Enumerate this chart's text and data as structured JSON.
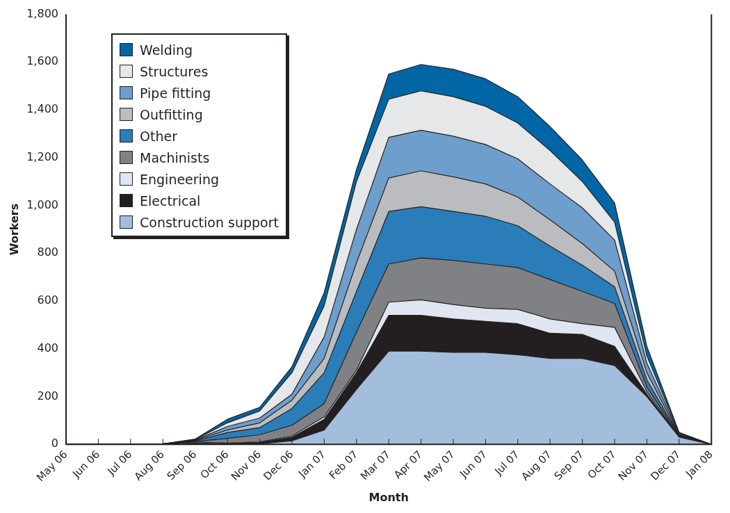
{
  "chart_data": {
    "type": "area",
    "stacked": true,
    "xlabel": "Month",
    "ylabel": "Workers",
    "categories": [
      "May 06",
      "Jun 06",
      "Jul 06",
      "Aug 06",
      "Sep 06",
      "Oct 06",
      "Nov 06",
      "Dec 06",
      "Jan 07",
      "Feb 07",
      "Mar 07",
      "Apr 07",
      "May 07",
      "Jun 07",
      "Jul 07",
      "Aug 07",
      "Sep 07",
      "Oct 07",
      "Nov 07",
      "Dec 07",
      "Jan 08"
    ],
    "ylim": [
      0,
      1800
    ],
    "yticks": [
      0,
      200,
      400,
      600,
      800,
      {
        "value": 1000,
        "label": "1,000"
      },
      {
        "value": 1200,
        "label": "1,200"
      },
      {
        "value": 1400,
        "label": "1,400"
      },
      {
        "value": 1600,
        "label": "1,600"
      },
      {
        "value": 1800,
        "label": "1,800"
      }
    ],
    "grid": false,
    "legend": "top left",
    "marker": "none",
    "series": [
      {
        "name": "Construction support",
        "color": "#a3bddc",
        "values": [
          0,
          0,
          0,
          0,
          0,
          0,
          2,
          15,
          60,
          230,
          390,
          390,
          385,
          385,
          375,
          360,
          360,
          330,
          200,
          30,
          0
        ]
      },
      {
        "name": "Electrical",
        "color": "#231f20",
        "values": [
          0,
          2,
          2,
          2,
          5,
          3,
          6,
          15,
          45,
          70,
          150,
          150,
          140,
          130,
          130,
          105,
          100,
          80,
          10,
          2,
          0
        ]
      },
      {
        "name": "Engineering",
        "color": "#dfe6f1",
        "values": [
          0,
          0,
          0,
          0,
          5,
          2,
          2,
          5,
          10,
          10,
          55,
          65,
          60,
          55,
          60,
          60,
          45,
          80,
          10,
          2,
          0
        ]
      },
      {
        "name": "Machinists",
        "color": "#808185",
        "values": [
          0,
          0,
          0,
          0,
          2,
          20,
          30,
          45,
          55,
          160,
          160,
          175,
          185,
          185,
          175,
          165,
          135,
          100,
          20,
          2,
          0
        ]
      },
      {
        "name": "Other",
        "color": "#2a7db8",
        "values": [
          0,
          0,
          0,
          0,
          2,
          25,
          30,
          70,
          130,
          170,
          220,
          215,
          205,
          200,
          175,
          140,
          110,
          70,
          30,
          2,
          0
        ]
      },
      {
        "name": "Outfitting",
        "color": "#bbbcc0",
        "values": [
          0,
          0,
          0,
          0,
          2,
          10,
          20,
          35,
          60,
          120,
          140,
          150,
          145,
          135,
          120,
          110,
          90,
          65,
          30,
          2,
          0
        ]
      },
      {
        "name": "Pipe fitting",
        "color": "#6e9ecb",
        "values": [
          0,
          0,
          0,
          0,
          2,
          15,
          20,
          25,
          90,
          140,
          170,
          170,
          170,
          165,
          160,
          150,
          150,
          130,
          40,
          3,
          0
        ]
      },
      {
        "name": "Structures",
        "color": "#e6e7e9",
        "values": [
          0,
          0,
          0,
          0,
          2,
          15,
          30,
          90,
          130,
          200,
          160,
          165,
          165,
          160,
          150,
          140,
          110,
          75,
          30,
          3,
          0
        ]
      },
      {
        "name": "Welding",
        "color": "#0066a6",
        "values": [
          0,
          0,
          0,
          0,
          2,
          15,
          15,
          25,
          55,
          50,
          105,
          110,
          115,
          115,
          110,
          100,
          90,
          80,
          40,
          4,
          0
        ]
      }
    ]
  }
}
